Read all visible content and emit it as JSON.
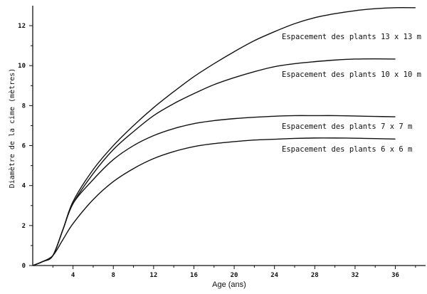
{
  "chart_data": {
    "type": "line",
    "title": "",
    "xlabel": "Age (ans)",
    "ylabel": "Diamètre de la cime (mètres)",
    "xlim": [
      0,
      39
    ],
    "ylim": [
      0,
      13
    ],
    "xticks": [
      4,
      8,
      12,
      16,
      20,
      24,
      28,
      32,
      36
    ],
    "yticks": [
      0,
      2,
      4,
      6,
      8,
      10,
      12
    ],
    "grid": false,
    "legend": "none",
    "series": [
      {
        "name": "Espacement des plants 13 x 13 m",
        "x": [
          0,
          1,
          2,
          3,
          4,
          6,
          8,
          10,
          12,
          14,
          16,
          18,
          20,
          22,
          24,
          26,
          28,
          30,
          32,
          34,
          36,
          38
        ],
        "y": [
          0,
          0.2,
          0.5,
          1.8,
          3.2,
          4.8,
          6.0,
          7.0,
          7.9,
          8.7,
          9.45,
          10.1,
          10.7,
          11.25,
          11.7,
          12.1,
          12.4,
          12.6,
          12.75,
          12.85,
          12.9,
          12.9
        ]
      },
      {
        "name": "Espacement des plants 10 x 10 m",
        "x": [
          0,
          1,
          2,
          3,
          4,
          6,
          8,
          10,
          12,
          14,
          16,
          18,
          20,
          22,
          24,
          26,
          28,
          30,
          32,
          34,
          36
        ],
        "y": [
          0,
          0.2,
          0.5,
          1.8,
          3.1,
          4.6,
          5.8,
          6.7,
          7.5,
          8.1,
          8.6,
          9.05,
          9.4,
          9.7,
          9.95,
          10.1,
          10.2,
          10.28,
          10.33,
          10.34,
          10.33
        ]
      },
      {
        "name": "Espacement des plants 7 x 7 m",
        "x": [
          0,
          1,
          2,
          3,
          4,
          6,
          8,
          10,
          12,
          14,
          16,
          18,
          20,
          22,
          24,
          26,
          28,
          30,
          32,
          34,
          36
        ],
        "y": [
          0,
          0.2,
          0.5,
          1.8,
          3.1,
          4.3,
          5.3,
          6.0,
          6.5,
          6.85,
          7.1,
          7.25,
          7.35,
          7.42,
          7.47,
          7.5,
          7.5,
          7.5,
          7.48,
          7.46,
          7.44
        ]
      },
      {
        "name": "Espacement des plants 6 x 6 m",
        "x": [
          0,
          1,
          2,
          3,
          4,
          6,
          8,
          10,
          12,
          14,
          16,
          18,
          20,
          22,
          24,
          26,
          28,
          30,
          32,
          34,
          36
        ],
        "y": [
          0,
          0.2,
          0.5,
          1.3,
          2.1,
          3.3,
          4.2,
          4.85,
          5.35,
          5.7,
          5.95,
          6.1,
          6.2,
          6.28,
          6.32,
          6.36,
          6.38,
          6.38,
          6.37,
          6.35,
          6.33
        ]
      }
    ]
  }
}
